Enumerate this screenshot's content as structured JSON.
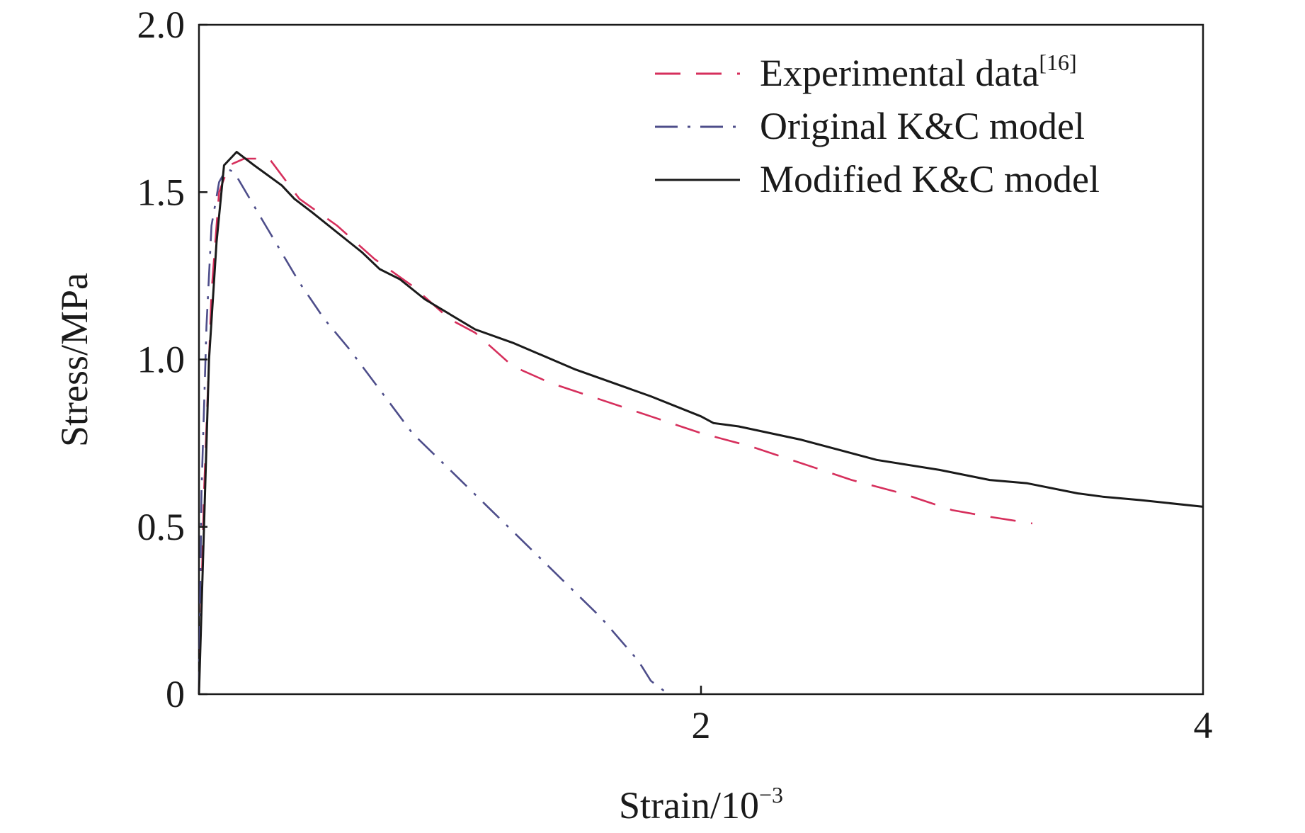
{
  "chart_data": {
    "type": "line",
    "xlabel": "Strain/10",
    "xlabel_sup": "−3",
    "ylabel": "Stress/MPa",
    "xlim": [
      0,
      4
    ],
    "ylim": [
      0,
      2.0
    ],
    "x_ticks": [
      2,
      4
    ],
    "x_tick_labels": [
      "2",
      "4"
    ],
    "y_ticks": [
      0,
      0.5,
      1.0,
      1.5,
      2.0
    ],
    "y_tick_labels": [
      "0",
      "0.5",
      "1.0",
      "1.5",
      "2.0"
    ],
    "grid": false,
    "legend_position": "top-right",
    "series": [
      {
        "name": "Experimental data",
        "name_sup": "[16]",
        "color": "#d62f5c",
        "dash": "dashed",
        "points": [
          [
            0.0,
            0.0
          ],
          [
            0.02,
            0.6
          ],
          [
            0.05,
            1.2
          ],
          [
            0.08,
            1.5
          ],
          [
            0.12,
            1.58
          ],
          [
            0.18,
            1.6
          ],
          [
            0.28,
            1.6
          ],
          [
            0.4,
            1.48
          ],
          [
            0.55,
            1.4
          ],
          [
            0.7,
            1.3
          ],
          [
            0.85,
            1.22
          ],
          [
            1.0,
            1.12
          ],
          [
            1.1,
            1.08
          ],
          [
            1.25,
            0.98
          ],
          [
            1.4,
            0.93
          ],
          [
            1.6,
            0.88
          ],
          [
            1.8,
            0.83
          ],
          [
            2.0,
            0.78
          ],
          [
            2.2,
            0.74
          ],
          [
            2.4,
            0.69
          ],
          [
            2.6,
            0.64
          ],
          [
            2.8,
            0.6
          ],
          [
            3.0,
            0.55
          ],
          [
            3.15,
            0.53
          ],
          [
            3.32,
            0.51
          ]
        ]
      },
      {
        "name": "Original K&C model",
        "color": "#4d4d8a",
        "dash": "dashdot",
        "points": [
          [
            0.0,
            0.0
          ],
          [
            0.01,
            0.6
          ],
          [
            0.03,
            1.1
          ],
          [
            0.05,
            1.4
          ],
          [
            0.08,
            1.53
          ],
          [
            0.11,
            1.57
          ],
          [
            0.14,
            1.56
          ],
          [
            0.25,
            1.42
          ],
          [
            0.4,
            1.23
          ],
          [
            0.5,
            1.12
          ],
          [
            0.6,
            1.03
          ],
          [
            0.75,
            0.88
          ],
          [
            0.85,
            0.78
          ],
          [
            1.0,
            0.67
          ],
          [
            1.15,
            0.56
          ],
          [
            1.3,
            0.45
          ],
          [
            1.45,
            0.34
          ],
          [
            1.6,
            0.23
          ],
          [
            1.75,
            0.1
          ],
          [
            1.8,
            0.04
          ],
          [
            1.87,
            0.0
          ]
        ]
      },
      {
        "name": "Modified K&C model",
        "color": "#1a1a1a",
        "dash": "solid",
        "points": [
          [
            0.0,
            0.0
          ],
          [
            0.02,
            0.5
          ],
          [
            0.04,
            1.0
          ],
          [
            0.07,
            1.35
          ],
          [
            0.1,
            1.58
          ],
          [
            0.15,
            1.62
          ],
          [
            0.22,
            1.58
          ],
          [
            0.33,
            1.52
          ],
          [
            0.38,
            1.48
          ],
          [
            0.45,
            1.44
          ],
          [
            0.55,
            1.38
          ],
          [
            0.65,
            1.32
          ],
          [
            0.72,
            1.27
          ],
          [
            0.8,
            1.24
          ],
          [
            0.9,
            1.18
          ],
          [
            1.1,
            1.09
          ],
          [
            1.25,
            1.05
          ],
          [
            1.5,
            0.97
          ],
          [
            1.8,
            0.89
          ],
          [
            2.0,
            0.83
          ],
          [
            2.05,
            0.81
          ],
          [
            2.15,
            0.8
          ],
          [
            2.4,
            0.76
          ],
          [
            2.7,
            0.7
          ],
          [
            2.95,
            0.67
          ],
          [
            3.15,
            0.64
          ],
          [
            3.3,
            0.63
          ],
          [
            3.5,
            0.6
          ],
          [
            3.6,
            0.59
          ],
          [
            3.75,
            0.58
          ],
          [
            4.0,
            0.56
          ]
        ]
      }
    ]
  }
}
